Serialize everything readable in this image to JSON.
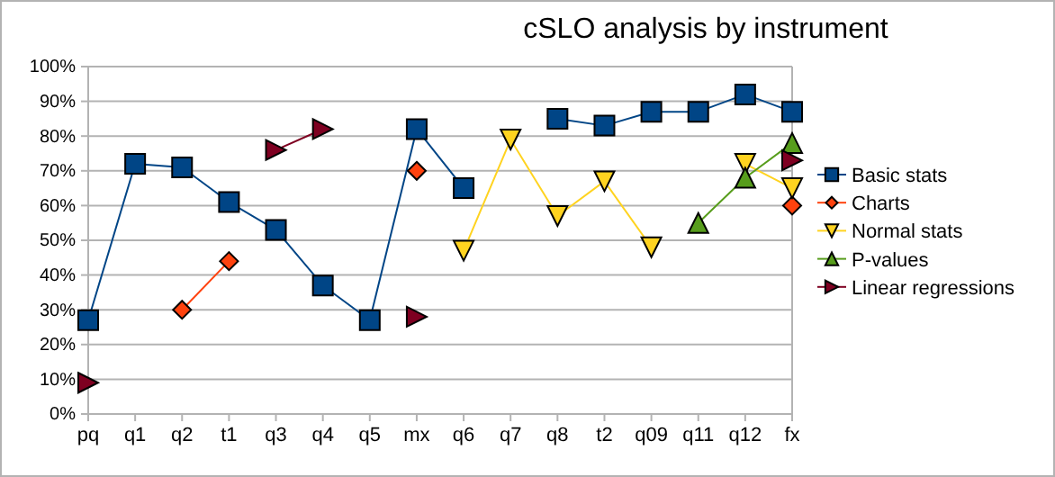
{
  "chart_data": {
    "type": "line",
    "title": "cSLO analysis by instrument",
    "categories": [
      "pq",
      "q1",
      "q2",
      "t1",
      "q3",
      "q4",
      "q5",
      "mx",
      "q6",
      "q7",
      "q8",
      "t2",
      "q09",
      "q11",
      "q12",
      "fx"
    ],
    "series": [
      {
        "name": "Basic stats",
        "color": "#004586",
        "marker": "square",
        "values": [
          27,
          72,
          71,
          61,
          53,
          37,
          27,
          82,
          65,
          null,
          85,
          83,
          87,
          87,
          92,
          87
        ]
      },
      {
        "name": "Charts",
        "color": "#ff420e",
        "marker": "diamond",
        "values": [
          null,
          null,
          30,
          44,
          null,
          null,
          null,
          70,
          null,
          null,
          null,
          null,
          null,
          null,
          null,
          60
        ]
      },
      {
        "name": "Normal stats",
        "color": "#ffd320",
        "marker": "triangle-down",
        "values": [
          null,
          null,
          null,
          null,
          null,
          null,
          null,
          null,
          47,
          79,
          57,
          67,
          48,
          null,
          72,
          65
        ]
      },
      {
        "name": "P-values",
        "color": "#579d1c",
        "marker": "triangle",
        "values": [
          null,
          null,
          null,
          null,
          null,
          null,
          null,
          null,
          null,
          null,
          null,
          null,
          null,
          55,
          68,
          78
        ]
      },
      {
        "name": "Linear regressions",
        "color": "#7e0021",
        "marker": "triangle-right",
        "values": [
          9,
          null,
          null,
          null,
          76,
          82,
          null,
          28,
          null,
          null,
          null,
          null,
          null,
          null,
          null,
          73
        ]
      }
    ],
    "ylim": [
      0,
      100
    ],
    "yticks": [
      {
        "value": 0,
        "label": "0%"
      },
      {
        "value": 10,
        "label": "10%"
      },
      {
        "value": 20,
        "label": "20%"
      },
      {
        "value": 30,
        "label": "30%"
      },
      {
        "value": 40,
        "label": "40%"
      },
      {
        "value": 50,
        "label": "50%"
      },
      {
        "value": 60,
        "label": "60%"
      },
      {
        "value": 70,
        "label": "70%"
      },
      {
        "value": 80,
        "label": "80%"
      },
      {
        "value": 90,
        "label": "90%"
      },
      {
        "value": 100,
        "label": "100%"
      }
    ],
    "grid": "y",
    "legend": "right"
  }
}
